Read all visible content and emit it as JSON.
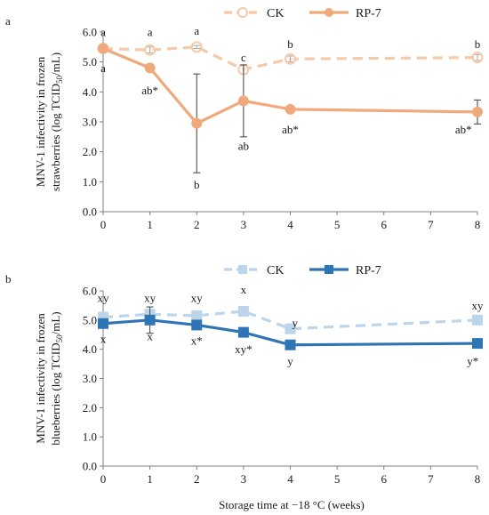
{
  "xlabel": "Storage time at −18 °C (weeks)",
  "chart_data": [
    {
      "type": "line",
      "panel_letter": "a",
      "ylabel_line1": "MNV-1 infectivity in frozen",
      "ylabel_line2_pre": "strawberries (log TCID",
      "ylabel_sub": "50",
      "ylabel_line2_post": "/mL)",
      "x": [
        0,
        1,
        2,
        3,
        4,
        8
      ],
      "xticks": [
        0,
        1,
        2,
        3,
        4,
        5,
        6,
        7,
        8
      ],
      "yticks": [
        "0.0",
        "1.0",
        "2.0",
        "3.0",
        "4.0",
        "5.0",
        "6.0"
      ],
      "ylim": [
        0,
        6
      ],
      "grid": false,
      "legend_position": "top",
      "series": [
        {
          "name": "CK",
          "color": "#f6c9a8",
          "style": "dashed",
          "marker": "open-circle",
          "values": [
            5.45,
            5.4,
            5.5,
            4.75,
            5.1,
            5.15
          ],
          "err": [
            0.05,
            0.1,
            0.05,
            0.15,
            0.1,
            0.1
          ]
        },
        {
          "name": "RP-7",
          "color": "#f0a97a",
          "style": "solid",
          "marker": "filled-circle",
          "values": [
            5.45,
            4.8,
            2.95,
            3.7,
            3.42,
            3.33
          ],
          "err": [
            0.05,
            0.05,
            1.65,
            1.2,
            0.05,
            0.4
          ]
        }
      ],
      "annotations": [
        {
          "x": 0,
          "y": 6.0,
          "text": "a"
        },
        {
          "x": 0,
          "y": 4.8,
          "text": "a"
        },
        {
          "x": 1,
          "y": 6.0,
          "text": "a"
        },
        {
          "x": 1,
          "y": 4.05,
          "text": "ab*"
        },
        {
          "x": 2,
          "y": 6.05,
          "text": "a"
        },
        {
          "x": 2,
          "y": 0.9,
          "text": "b"
        },
        {
          "x": 3,
          "y": 5.15,
          "text": "c"
        },
        {
          "x": 3,
          "y": 2.2,
          "text": "ab"
        },
        {
          "x": 4,
          "y": 5.6,
          "text": "b"
        },
        {
          "x": 4,
          "y": 2.75,
          "text": "ab*"
        },
        {
          "x": 8,
          "y": 5.6,
          "text": "b"
        },
        {
          "x": 7.7,
          "y": 2.75,
          "text": "ab*"
        }
      ]
    },
    {
      "type": "line",
      "panel_letter": "b",
      "ylabel_line1": "MNV-1 infectivity in frozen",
      "ylabel_line2_pre": "blueberries (log TCID",
      "ylabel_sub": "50",
      "ylabel_line2_post": "/mL)",
      "x": [
        0,
        1,
        2,
        3,
        4,
        8
      ],
      "xticks": [
        0,
        1,
        2,
        3,
        4,
        5,
        6,
        7,
        8
      ],
      "yticks": [
        "0.0",
        "1.0",
        "2.0",
        "3.0",
        "4.0",
        "5.0",
        "6.0"
      ],
      "ylim": [
        0,
        6
      ],
      "grid": false,
      "legend_position": "top",
      "series": [
        {
          "name": "CK",
          "color": "#bcd5eb",
          "style": "dashed",
          "marker": "filled-square",
          "values": [
            5.1,
            5.2,
            5.15,
            5.3,
            4.7,
            5.0
          ],
          "err": [
            0.1,
            0.1,
            0.1,
            0.1,
            0.15,
            0.1
          ]
        },
        {
          "name": "RP-7",
          "color": "#2e75b6",
          "style": "solid",
          "marker": "filled-square",
          "values": [
            4.88,
            5.0,
            4.83,
            4.58,
            4.15,
            4.2
          ],
          "err": [
            0.05,
            0.45,
            0.05,
            0.1,
            0.1,
            0.05
          ]
        }
      ],
      "annotations": [
        {
          "x": 0,
          "y": 5.75,
          "text": "xy"
        },
        {
          "x": 0,
          "y": 4.35,
          "text": "x"
        },
        {
          "x": 1,
          "y": 5.75,
          "text": "xy"
        },
        {
          "x": 1,
          "y": 4.45,
          "text": "x"
        },
        {
          "x": 2,
          "y": 5.75,
          "text": "xy"
        },
        {
          "x": 2,
          "y": 4.3,
          "text": "x*"
        },
        {
          "x": 3,
          "y": 6.05,
          "text": "x"
        },
        {
          "x": 3,
          "y": 4.0,
          "text": "xy*"
        },
        {
          "x": 4.1,
          "y": 4.9,
          "text": "y"
        },
        {
          "x": 4,
          "y": 3.6,
          "text": "y"
        },
        {
          "x": 8,
          "y": 5.5,
          "text": "xy"
        },
        {
          "x": 7.9,
          "y": 3.6,
          "text": "y*"
        }
      ]
    }
  ]
}
